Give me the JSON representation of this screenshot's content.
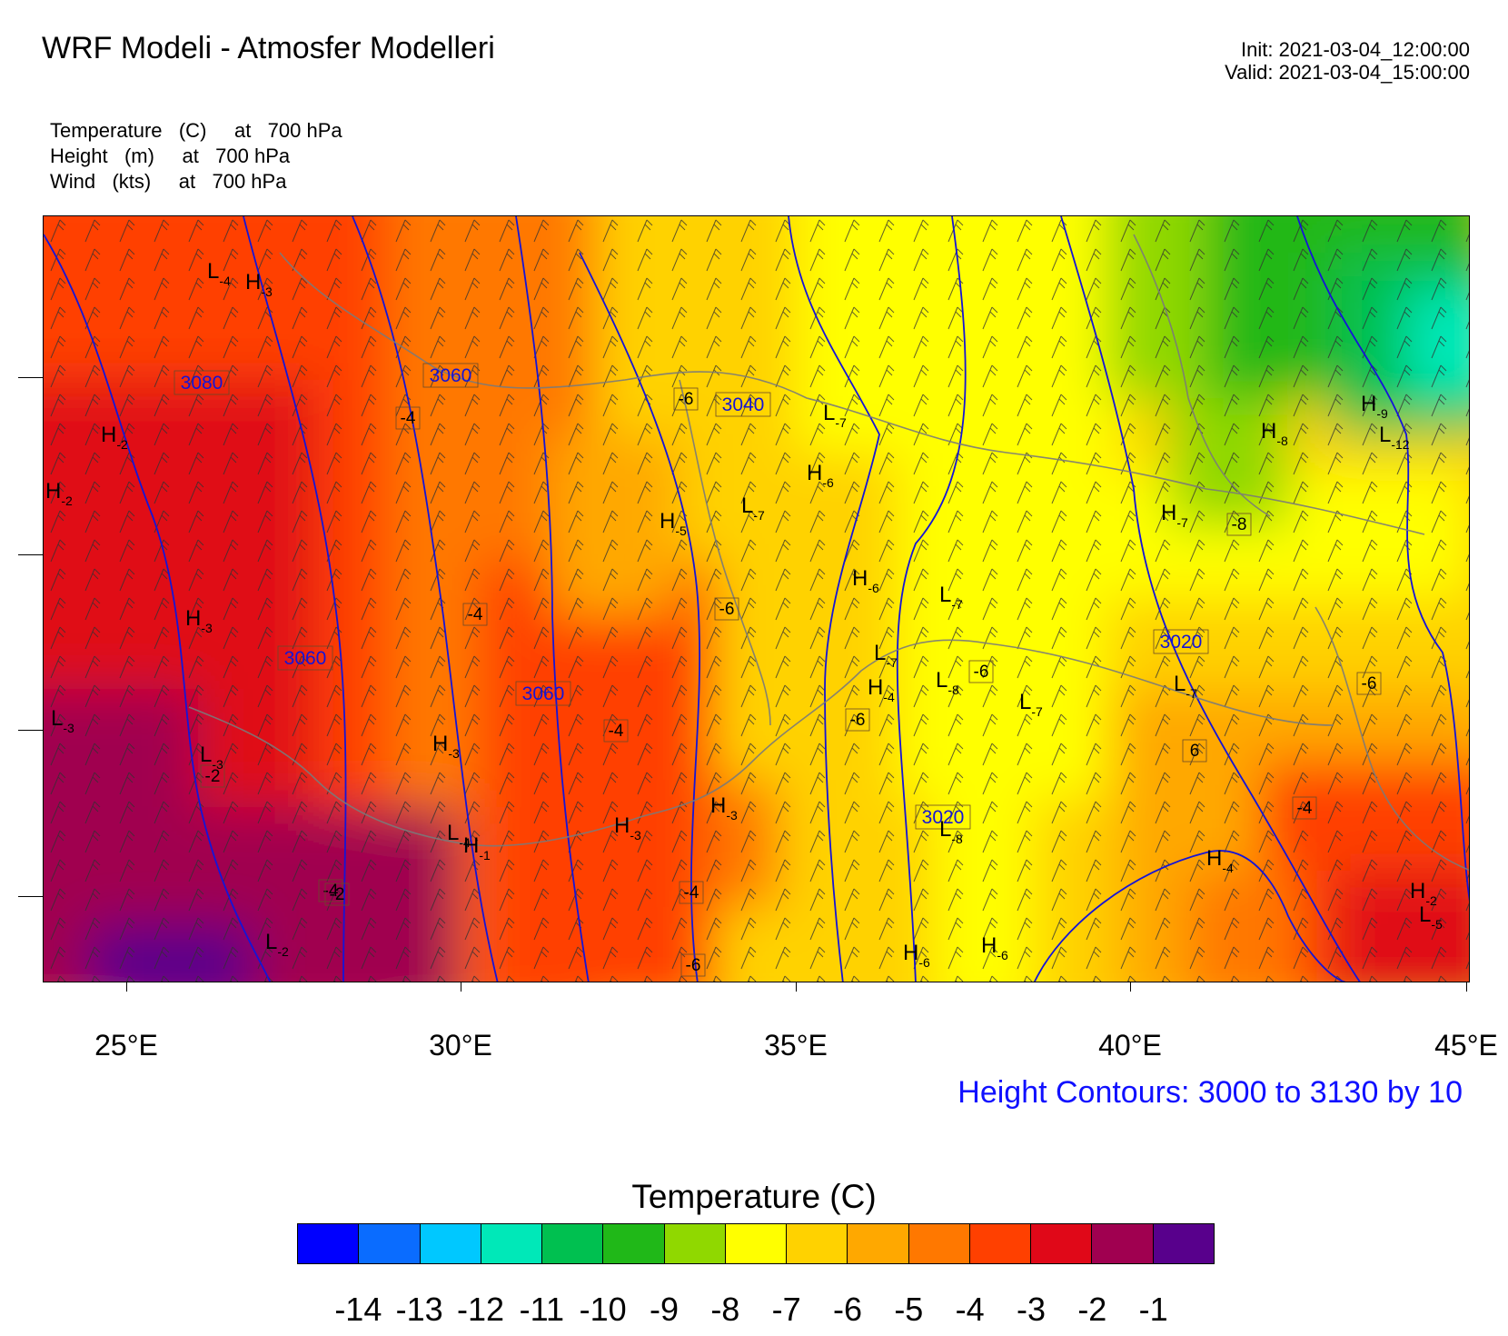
{
  "header": {
    "title": "WRF Modeli - Atmosfer Modelleri",
    "init": "Init: 2021-03-04_12:00:00",
    "valid": "Valid: 2021-03-04_15:00:00"
  },
  "fields": [
    {
      "name": "Temperature",
      "unit": "(C)",
      "level": "at   700 hPa"
    },
    {
      "name": "Height",
      "unit": "(m)",
      "level": "at   700 hPa"
    },
    {
      "name": "Wind",
      "unit": "(kts)",
      "level": "at   700 hPa"
    }
  ],
  "map": {
    "lon_ticks": [
      "25°E",
      "30°E",
      "35°E",
      "40°E",
      "45°E"
    ],
    "contour_info": "Height Contours: 3000 to 3130 by 10",
    "height_labels": [
      "3080",
      "3060",
      "3040",
      "3060",
      "3060",
      "3020",
      "3020"
    ],
    "temp_box_labels": [
      "-4",
      "-6",
      "-4",
      "-6",
      "-6",
      "-4",
      "-2",
      "-4",
      "-6",
      "-6",
      "-8",
      "6",
      "-4",
      "-2",
      "-4",
      "-6"
    ],
    "centers": [
      {
        "letter": "L",
        "sub": "4"
      },
      {
        "letter": "H",
        "sub": "3"
      },
      {
        "letter": "H",
        "sub": "2"
      },
      {
        "letter": "H",
        "sub": "2"
      },
      {
        "letter": "H",
        "sub": "3"
      },
      {
        "letter": "L",
        "sub": "3"
      },
      {
        "letter": "L",
        "sub": "3"
      },
      {
        "letter": "H",
        "sub": "3"
      },
      {
        "letter": "L",
        "sub": "4"
      },
      {
        "letter": "H",
        "sub": "1"
      },
      {
        "letter": "H",
        "sub": "3"
      },
      {
        "letter": "H",
        "sub": "3"
      },
      {
        "letter": "L",
        "sub": "7"
      },
      {
        "letter": "H",
        "sub": "6"
      },
      {
        "letter": "L",
        "sub": "7"
      },
      {
        "letter": "H",
        "sub": "5"
      },
      {
        "letter": "H",
        "sub": "6"
      },
      {
        "letter": "L",
        "sub": "7"
      },
      {
        "letter": "L",
        "sub": "7"
      },
      {
        "letter": "H",
        "sub": "4"
      },
      {
        "letter": "L",
        "sub": "8"
      },
      {
        "letter": "L",
        "sub": "7"
      },
      {
        "letter": "L",
        "sub": "8"
      },
      {
        "letter": "H",
        "sub": "6"
      },
      {
        "letter": "H",
        "sub": "6"
      },
      {
        "letter": "H",
        "sub": "7"
      },
      {
        "letter": "H",
        "sub": "8"
      },
      {
        "letter": "H",
        "sub": "9"
      },
      {
        "letter": "L",
        "sub": "12"
      },
      {
        "letter": "L",
        "sub": "7"
      },
      {
        "letter": "H",
        "sub": "4"
      },
      {
        "letter": "H",
        "sub": "2"
      },
      {
        "letter": "L",
        "sub": "5"
      },
      {
        "letter": "L",
        "sub": "2"
      }
    ]
  },
  "colorbar": {
    "title": "Temperature  (C)",
    "colors": [
      "#0000ff",
      "#0a6cff",
      "#00c8ff",
      "#00e8b8",
      "#00c050",
      "#20b818",
      "#90d800",
      "#ffff00",
      "#ffd200",
      "#ffa800",
      "#ff7800",
      "#ff4000",
      "#e00818",
      "#a00050",
      "#58008c"
    ],
    "labels": [
      "-14",
      "-13",
      "-12",
      "-11",
      "-10",
      "-9",
      "-8",
      "-7",
      "-6",
      "-5",
      "-4",
      "-3",
      "-2",
      "-1"
    ]
  }
}
